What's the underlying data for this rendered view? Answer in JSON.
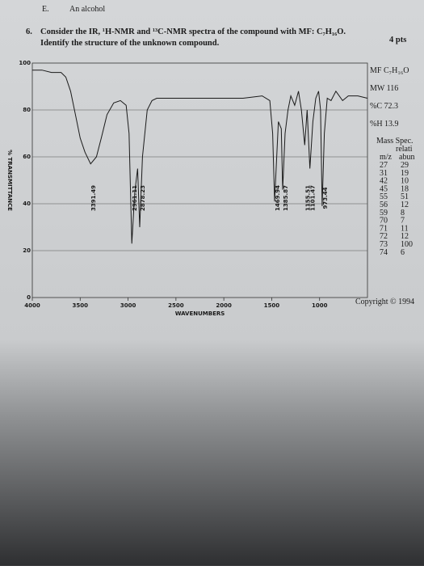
{
  "header": {
    "option": "E.",
    "option_text": "An alcohol",
    "number": "6.",
    "question": "Consider the IR, ¹H-NMR and ¹³C-NMR spectra of the compound with MF: C₇H₁₆O.",
    "question2": "Identify the structure of the unknown compound.",
    "points": "4 pts"
  },
  "side": {
    "mf": "MF C₇H₁₆O",
    "mw": "MW 116",
    "c": "%C 72.3",
    "h": "%H 13.9",
    "ms_title": "Mass Spec.",
    "ms_col2_top": "relati",
    "ms_head": [
      "m/z",
      "abun"
    ],
    "ms_rows": [
      [
        27,
        29
      ],
      [
        31,
        19
      ],
      [
        42,
        10
      ],
      [
        45,
        18
      ],
      [
        55,
        51
      ],
      [
        56,
        12
      ],
      [
        59,
        8
      ],
      [
        70,
        7
      ],
      [
        71,
        11
      ],
      [
        72,
        12
      ],
      [
        73,
        100
      ],
      [
        74,
        6
      ]
    ],
    "copyright": "Copyright © 1994"
  },
  "chart_data": {
    "type": "line",
    "x_label": "WAVENUMBERS",
    "y_label": "% TRANSMITTANCE",
    "x": [
      4000,
      3900,
      3800,
      3700,
      3650,
      3600,
      3550,
      3500,
      3450,
      3391.49,
      3330,
      3280,
      3220,
      3150,
      3080,
      3020,
      2990,
      2961.11,
      2930,
      2900,
      2878.23,
      2850,
      2800,
      2750,
      2700,
      2500,
      2300,
      2100,
      2000,
      1800,
      1600,
      1520,
      1490,
      1469.94,
      1430,
      1400,
      1385.87,
      1360,
      1330,
      1300,
      1260,
      1220,
      1190,
      1155.51,
      1130,
      1101.47,
      1070,
      1040,
      1010,
      990,
      973.44,
      950,
      920,
      880,
      830,
      760,
      700,
      600,
      500
    ],
    "series": [
      {
        "color": "#1a1a1a",
        "values": [
          97,
          97,
          96,
          96,
          94,
          88,
          78,
          68,
          62,
          57,
          60,
          68,
          78,
          83,
          84,
          82,
          70,
          23,
          45,
          55,
          30,
          60,
          80,
          84,
          85,
          85,
          85,
          85,
          85,
          85,
          86,
          84,
          70,
          41,
          75,
          72,
          46,
          70,
          80,
          86,
          82,
          88,
          80,
          65,
          80,
          55,
          75,
          85,
          88,
          80,
          39,
          70,
          85,
          84,
          88,
          84,
          86,
          86,
          85
        ]
      }
    ],
    "peaks": [
      3391.49,
      2961.11,
      2878.23,
      1469.94,
      1385.87,
      1155.51,
      1101.47,
      973.44
    ],
    "xlim": [
      4000,
      500
    ],
    "ylim": [
      0,
      100
    ],
    "xticks": [
      4000,
      3500,
      3000,
      2500,
      2000,
      1500,
      1000
    ],
    "yticks": [
      0,
      20,
      40,
      60,
      80,
      100
    ],
    "grid": true
  }
}
